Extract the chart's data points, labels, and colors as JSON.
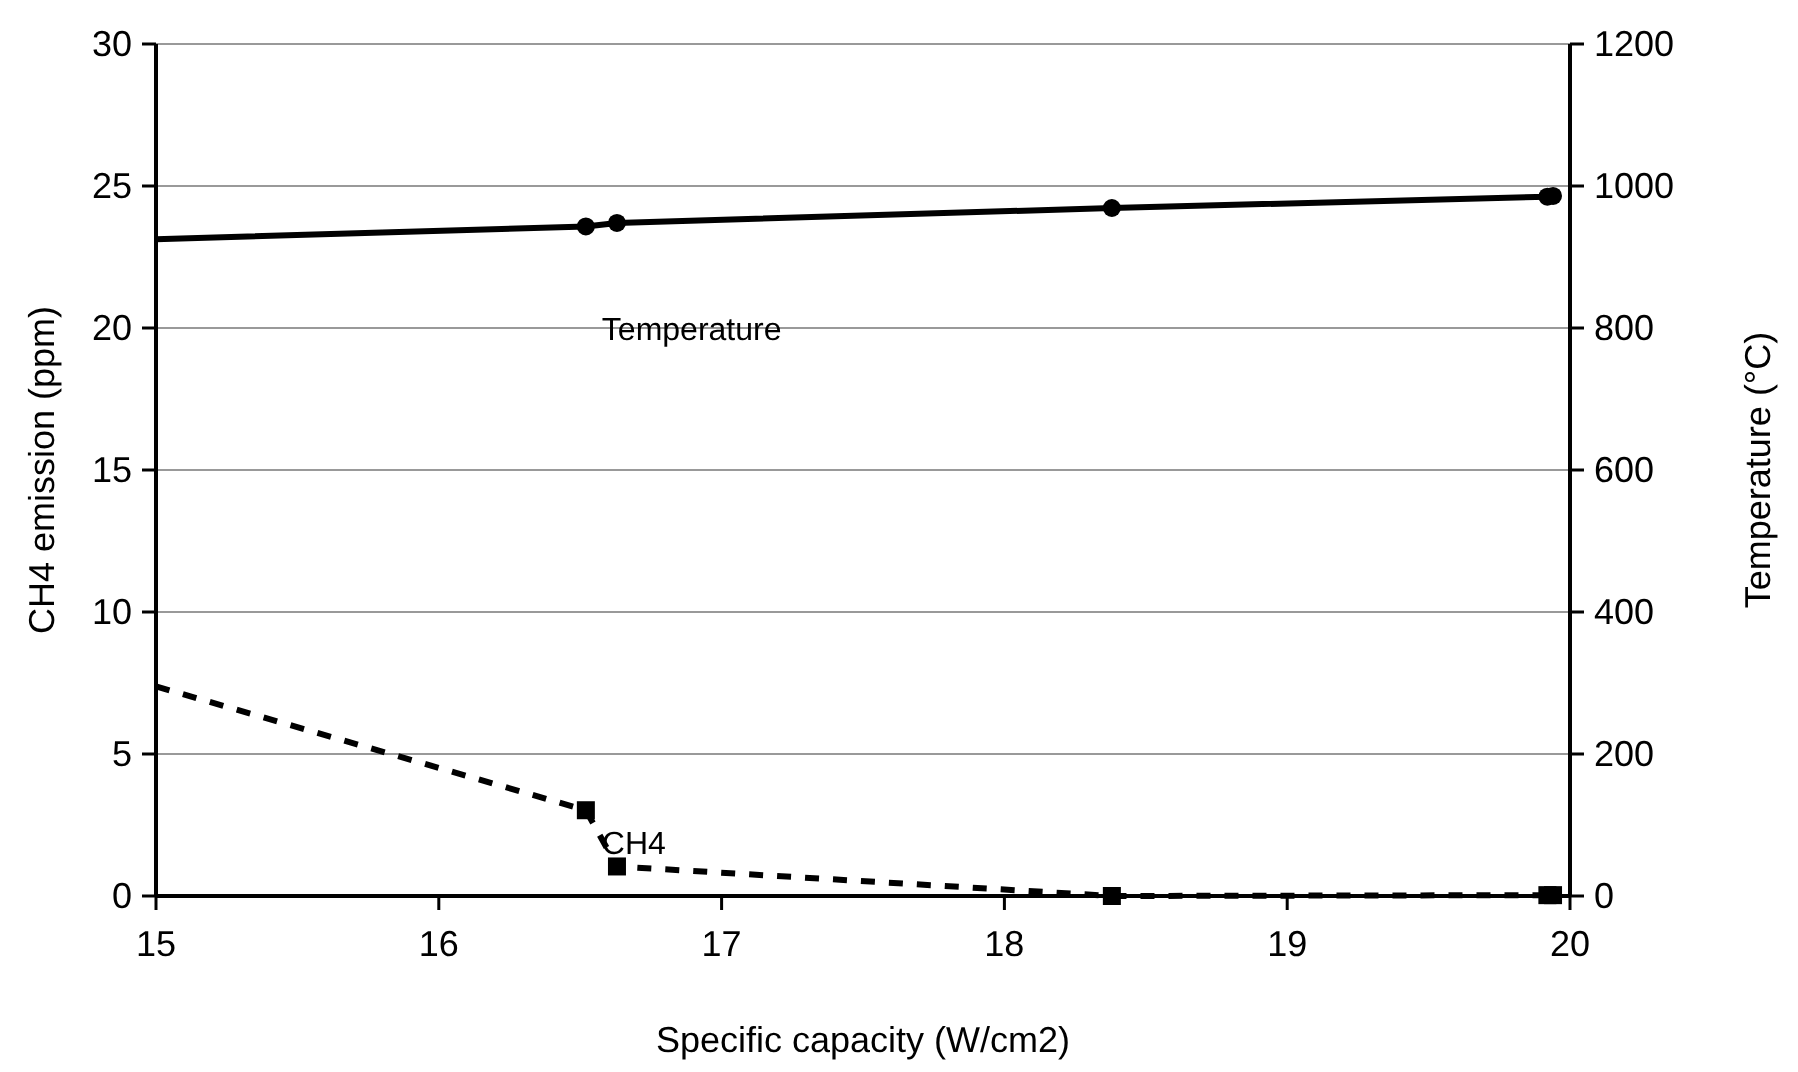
{
  "chart_data": {
    "type": "line",
    "xlabel": "Specific capacity (W/cm2)",
    "ylabel": "CH4 emission (ppm)",
    "y2label": "Temperature (°C)",
    "xlim": [
      15,
      20
    ],
    "xticks": [
      15,
      16,
      17,
      18,
      19,
      20
    ],
    "ylim": [
      0,
      30
    ],
    "yticks": [
      0,
      5,
      10,
      15,
      20,
      25,
      30
    ],
    "y2lim": [
      0,
      1200
    ],
    "y2ticks": [
      0,
      200,
      400,
      600,
      800,
      1000,
      1200
    ],
    "grid": "y",
    "series": [
      {
        "name": "Temperature",
        "axis": "y2",
        "color": "#000000",
        "line_style": "solid",
        "marker": "none",
        "x": [
          15,
          16.52,
          16.63,
          18.38,
          19.92,
          19.94
        ],
        "values": [
          925,
          943,
          948,
          969,
          985,
          986
        ]
      },
      {
        "name": "CH4",
        "color": "#000000",
        "line_style": "dashed",
        "marker": "none",
        "x": [
          15,
          16.52,
          16.63,
          18.38,
          19.92,
          19.94
        ],
        "values": [
          7.38,
          3.02,
          1.04,
          0,
          0.03,
          0.03
        ]
      },
      {
        "type": "scatter",
        "axis": "y2",
        "color": "#000000",
        "marker": "circle",
        "x": [
          16.52,
          16.63,
          18.38,
          19.92,
          19.94
        ],
        "values": [
          943,
          948,
          969,
          985,
          986
        ]
      },
      {
        "type": "scatter",
        "color": "#000000",
        "marker": "square",
        "x": [
          16.52,
          16.63,
          18.38,
          19.92,
          19.94
        ],
        "values": [
          3.02,
          1.04,
          0,
          0.03,
          0.03
        ]
      }
    ]
  }
}
